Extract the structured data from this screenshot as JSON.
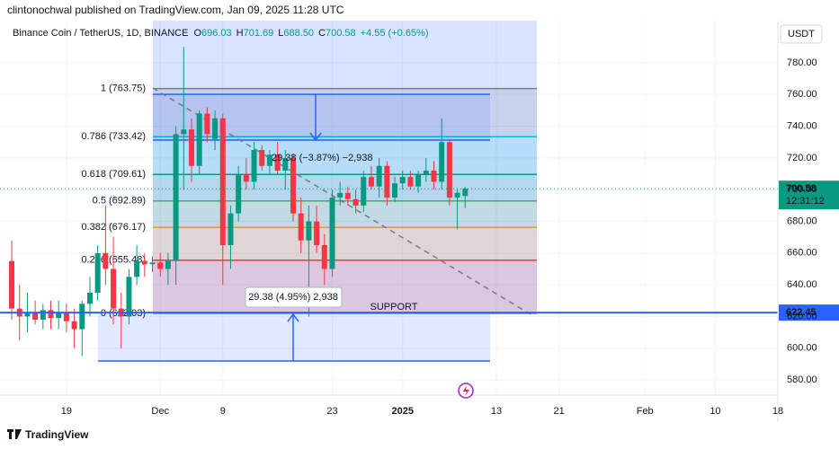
{
  "chart_data": {
    "type": "candlestick",
    "publisher": "clintonochwal published on TradingView.com, Jan 09, 2025 11:28 UTC",
    "symbol": "Binance Coin / TetherUS, 1D, BINANCE",
    "ohlc": [
      {
        "key": "O",
        "value": "696.03"
      },
      {
        "key": "H",
        "value": "701.69"
      },
      {
        "key": "L",
        "value": "688.50"
      },
      {
        "key": "C",
        "value": "700.58"
      }
    ],
    "change": "+4.55 (+0.65%)",
    "currency": "USDT",
    "brand": "TradingView",
    "up_color": "#089981",
    "down_color": "#f23645",
    "grid": true,
    "ylim": [
      570.4,
      806.6
    ],
    "xlim": [
      -1.5,
      98
    ],
    "yticks": [
      {
        "value": 580,
        "label": "580.00"
      },
      {
        "value": 600,
        "label": "600.00"
      },
      {
        "value": 620,
        "label": "620.00"
      },
      {
        "value": 640,
        "label": "640.00"
      },
      {
        "value": 660,
        "label": "660.00"
      },
      {
        "value": 680,
        "label": "680.00"
      },
      {
        "value": 700,
        "label": "700.00"
      },
      {
        "value": 720,
        "label": "720.00"
      },
      {
        "value": 740,
        "label": "740.00"
      },
      {
        "value": 760,
        "label": "760.00"
      },
      {
        "value": 780,
        "label": "780.00"
      }
    ],
    "xticks": [
      {
        "value": 7,
        "label": "19"
      },
      {
        "value": 19,
        "label": "Dec"
      },
      {
        "value": 27,
        "label": "9"
      },
      {
        "value": 41,
        "label": "23"
      },
      {
        "value": 50,
        "label": "2025"
      },
      {
        "value": 62,
        "label": "13"
      },
      {
        "value": 70,
        "label": "21"
      },
      {
        "value": 81,
        "label": "Feb"
      },
      {
        "value": 90,
        "label": "10"
      },
      {
        "value": 98,
        "label": "18"
      }
    ],
    "candles": {
      "open": [
        655,
        625,
        620,
        622,
        618,
        624,
        619,
        622,
        617,
        612,
        628,
        635,
        660,
        650,
        625,
        620,
        645,
        655,
        653,
        654,
        650,
        655,
        735,
        738,
        715,
        748,
        732,
        745,
        665,
        685,
        710,
        705,
        725,
        715,
        722,
        712,
        720,
        685,
        668,
        680,
        665,
        650,
        695,
        698,
        694,
        690,
        708,
        702,
        715,
        695,
        704,
        708,
        702,
        710,
        712,
        705,
        730,
        695,
        696.03
      ],
      "high": [
        668,
        640,
        635,
        630,
        628,
        630,
        630,
        628,
        625,
        630,
        645,
        665,
        690,
        670,
        635,
        650,
        665,
        660,
        658,
        660,
        660,
        740,
        790,
        745,
        750,
        752,
        750,
        748,
        690,
        715,
        720,
        730,
        728,
        725,
        730,
        725,
        722,
        695,
        690,
        690,
        672,
        700,
        705,
        702,
        700,
        712,
        715,
        720,
        718,
        708,
        712,
        712,
        712,
        720,
        718,
        745,
        732,
        700,
        701.69
      ],
      "low": [
        618,
        605,
        610,
        615,
        612,
        612,
        612,
        610,
        600,
        595,
        620,
        630,
        640,
        615,
        600,
        615,
        640,
        645,
        648,
        645,
        640,
        640,
        700,
        705,
        710,
        730,
        725,
        640,
        650,
        680,
        700,
        700,
        712,
        710,
        710,
        700,
        680,
        660,
        620,
        660,
        640,
        645,
        690,
        690,
        685,
        686,
        700,
        695,
        690,
        692,
        700,
        700,
        698,
        705,
        700,
        700,
        690,
        675,
        688.5
      ],
      "close": [
        625,
        620,
        622,
        618,
        624,
        619,
        622,
        617,
        612,
        628,
        635,
        660,
        650,
        625,
        620,
        645,
        655,
        653,
        654,
        650,
        655,
        735,
        738,
        715,
        748,
        735,
        745,
        665,
        685,
        710,
        705,
        725,
        715,
        722,
        712,
        720,
        685,
        668,
        680,
        665,
        650,
        695,
        698,
        694,
        690,
        708,
        702,
        715,
        695,
        704,
        708,
        702,
        710,
        712,
        705,
        730,
        695,
        698,
        700.58
      ]
    },
    "fib_levels": [
      {
        "value": 763.75,
        "label": "1 (763.75)",
        "color": "#787b86"
      },
      {
        "value": 733.42,
        "label": "0.786 (733.42)",
        "color": "#00bcd4"
      },
      {
        "value": 709.61,
        "label": "0.618 (709.61)",
        "color": "#089981"
      },
      {
        "value": 692.89,
        "label": "0.5 (692.89)",
        "color": "#4caf50"
      },
      {
        "value": 676.17,
        "label": "0.382 (676.17)",
        "color": "#ff9800"
      },
      {
        "value": 655.48,
        "label": "0.236 (655.48)",
        "color": "#f23645"
      },
      {
        "value": 622.03,
        "label": "0 (622.03)",
        "color": "#787b86"
      }
    ],
    "support": {
      "value": 622.45,
      "label": "622.45",
      "text": "SUPPORT",
      "color": "#2962ff"
    },
    "last_price": {
      "value": 700.58,
      "label": "700.58",
      "countdown": "12:31:12"
    },
    "measure_down": "29.38 (−3.87%) −2,938",
    "measure_up": "29.38 (4.95%) 2,938"
  }
}
